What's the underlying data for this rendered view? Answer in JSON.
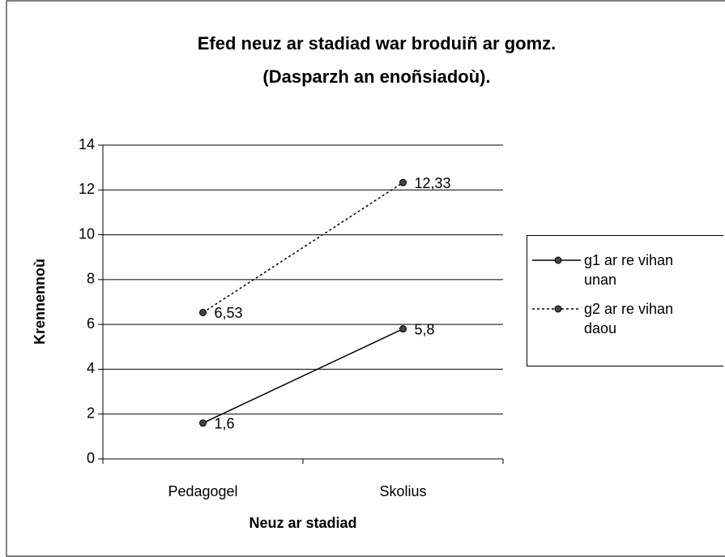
{
  "chart_data": {
    "type": "line",
    "title": [
      "Efed neuz ar stadiad war broduiñ ar gomz.",
      "(Dasparzh an enoñsiadoù)."
    ],
    "x_label": "Neuz ar stadiad",
    "y_label": "Krennennoù",
    "categories": [
      "Pedagogel",
      "Skolius"
    ],
    "series": [
      {
        "name": "g1 ar re vihan unan",
        "color": "#000000",
        "line_style": "solid",
        "values": [
          1.6,
          5.8
        ],
        "value_labels": [
          "1,6",
          "5,8"
        ]
      },
      {
        "name": "g2 ar re vihan daou",
        "color": "#000000",
        "line_style": "dotted",
        "values": [
          6.53,
          12.33
        ],
        "value_labels": [
          "6,53",
          "12,33"
        ]
      }
    ],
    "ylim": [
      0,
      14
    ],
    "yticks": [
      0,
      2,
      4,
      6,
      8,
      10,
      12,
      14
    ],
    "grid": true,
    "legend": "right"
  }
}
